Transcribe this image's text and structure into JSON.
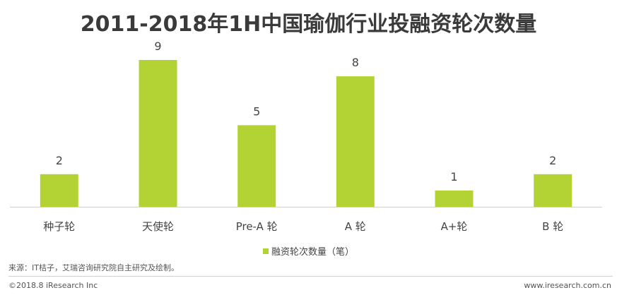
{
  "chart_data": {
    "type": "bar",
    "title": "2011-2018年1H中国瑜伽行业投融资轮次数量",
    "categories": [
      "种子轮",
      "天使轮",
      "Pre-A 轮",
      "A 轮",
      "A+轮",
      "B 轮"
    ],
    "series": [
      {
        "name": "融资轮次数量（笔）",
        "values": [
          2,
          9,
          5,
          8,
          1,
          2
        ]
      }
    ],
    "xlabel": "",
    "ylabel": "",
    "ylim": [
      0,
      9
    ],
    "grid": false,
    "data_labels": true,
    "legend_position": "bottom",
    "colors": {
      "bar": "#b3d334",
      "axis": "#d0d0d0"
    }
  },
  "footer": {
    "source": "来源：IT桔子，艾瑞咨询研究院自主研究及绘制。",
    "copyright": "©2018.8 iResearch Inc",
    "website": "www.iresearch.com.cn"
  }
}
